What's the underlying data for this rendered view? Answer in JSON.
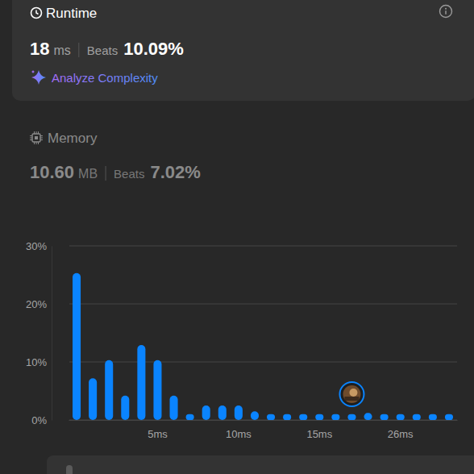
{
  "runtime": {
    "title": "Runtime",
    "value": "18",
    "unit": "ms",
    "beats_label": "Beats",
    "beats": "10.09%",
    "action": "Analyze Complexity"
  },
  "memory": {
    "title": "Memory",
    "value": "10.60",
    "unit": "MB",
    "beats_label": "Beats",
    "beats": "7.02%"
  },
  "chart_data": {
    "type": "bar",
    "categories": [
      null,
      null,
      null,
      null,
      null,
      "5ms",
      null,
      null,
      null,
      null,
      "10ms",
      null,
      null,
      null,
      null,
      "15ms",
      null,
      null,
      null,
      null,
      "26ms",
      null,
      null,
      null
    ],
    "values": [
      25.3,
      7.2,
      10.3,
      4.2,
      12.9,
      10.3,
      4.2,
      1.0,
      2.5,
      2.5,
      2.5,
      1.5,
      1.0,
      1.0,
      1.0,
      1.0,
      1.0,
      1.0,
      1.2,
      1.0,
      1.0,
      1.0,
      1.0,
      1.0
    ],
    "color": "#0a84ff",
    "ylim": [
      0,
      30
    ],
    "yticks": [
      {
        "value": 0,
        "label": "0%"
      },
      {
        "value": 10,
        "label": "10%"
      },
      {
        "value": 20,
        "label": "20%"
      },
      {
        "value": 30,
        "label": "30%"
      }
    ],
    "grid": true
  }
}
